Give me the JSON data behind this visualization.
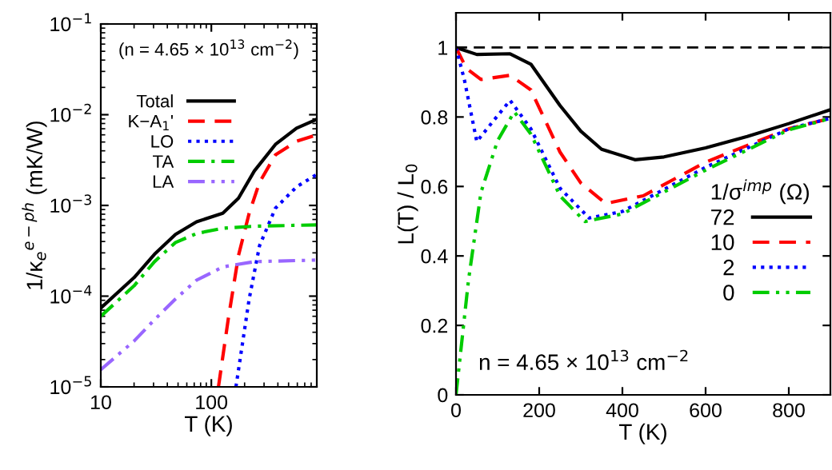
{
  "chart_data": [
    {
      "type": "line",
      "ylabel": "1/κ$_{e}$$^{e−ph}$ (mK/W)",
      "xlabel": "T (K)",
      "log": "xy",
      "xlim": [
        10,
        900
      ],
      "ylim": [
        1e-05,
        0.1
      ],
      "xticks": [
        10,
        100
      ],
      "yticks": [
        {
          "value": 1e-05,
          "label": "10$^{−5}$"
        },
        {
          "value": 0.0001,
          "label": "10$^{−4}$"
        },
        {
          "value": 0.001,
          "label": "10$^{−3}$"
        },
        {
          "value": 0.01,
          "label": "10$^{−2}$"
        },
        {
          "value": 0.1,
          "label": "10$^{−1}$"
        }
      ],
      "annotations": [
        "(n = 4.65 × 10$^{13}$ cm$^{−2}$)"
      ],
      "legend": "top left",
      "grid": false,
      "series": [
        {
          "name": "Total",
          "color": "#000000",
          "line_style": "solid",
          "x": [
            10,
            20,
            30.6,
            47.4,
            73.5,
            127,
            176,
            245,
            380,
            590,
            900
          ],
          "values": [
            7.4e-05,
            0.00016,
            0.00029,
            0.00048,
            0.00066,
            0.00082,
            0.0012,
            0.0024,
            0.0047,
            0.0071,
            0.0089
          ]
        },
        {
          "name": "K−A$_{1}$'",
          "color": "#ff0000",
          "line_style": "dashed",
          "x": [
            116,
            142,
            176,
            220,
            273,
            380,
            590,
            900
          ],
          "values": [
            1e-05,
            5.5e-05,
            0.00028,
            0.00082,
            0.0018,
            0.0036,
            0.0051,
            0.006
          ]
        },
        {
          "name": "LO",
          "color": "#0000ff",
          "line_style": "dotted",
          "x": [
            167,
            220,
            273,
            380,
            590,
            900
          ],
          "values": [
            1e-05,
            9.3e-05,
            0.00036,
            0.00093,
            0.0016,
            0.0022
          ]
        },
        {
          "name": "TA",
          "color": "#00cc00",
          "line_style": "dashdot",
          "x": [
            10,
            20,
            30.6,
            47.4,
            73.5,
            127,
            245,
            900
          ],
          "values": [
            6e-05,
            0.00013,
            0.00024,
            0.00039,
            0.00049,
            0.00056,
            0.00059,
            0.00061
          ]
        },
        {
          "name": "LA",
          "color": "#9966ff",
          "line_style": "dashdotdot",
          "x": [
            10,
            20,
            30.6,
            47.4,
            73.5,
            127,
            245,
            900
          ],
          "values": [
            1.55e-05,
            3.2e-05,
            5.5e-05,
            9.3e-05,
            0.00015,
            0.00021,
            0.00024,
            0.00025
          ]
        }
      ]
    },
    {
      "type": "line",
      "ylabel": "L(T) / L$_{0}$",
      "xlabel": "T (K)",
      "xlim": [
        0,
        900
      ],
      "ylim": [
        0,
        1.1
      ],
      "xticks": [
        0,
        200,
        400,
        600,
        800
      ],
      "yticks": [
        0,
        0.2,
        0.4,
        0.6,
        0.8,
        1
      ],
      "legend_title": "1/σ$^{imp}$ (Ω)",
      "legend": "right",
      "grid": false,
      "annotations": [
        "n = 4.65 × 10$^{13}$ cm$^{−2}$"
      ],
      "ref_lines": [
        {
          "axis": "y",
          "value": 1,
          "label": null,
          "color": "#000000",
          "line_style": "dashed"
        }
      ],
      "series": [
        {
          "name": "72",
          "color": "#000000",
          "line_style": "solid",
          "x": [
            0,
            50,
            130,
            180,
            250,
            300,
            350,
            430,
            500,
            600,
            700,
            800,
            900
          ],
          "values": [
            1.0,
            0.98,
            0.982,
            0.952,
            0.833,
            0.759,
            0.707,
            0.677,
            0.685,
            0.711,
            0.744,
            0.781,
            0.821
          ]
        },
        {
          "name": "10",
          "color": "#ff0000",
          "line_style": "dashed",
          "x": [
            0,
            25,
            60,
            130,
            180,
            250,
            300,
            360,
            450,
            600,
            800,
            900
          ],
          "values": [
            1.0,
            0.94,
            0.908,
            0.92,
            0.878,
            0.699,
            0.61,
            0.551,
            0.573,
            0.67,
            0.766,
            0.796
          ]
        },
        {
          "name": "2",
          "color": "#0000ff",
          "line_style": "dotted",
          "x": [
            0,
            20,
            50,
            80,
            130,
            180,
            250,
            320,
            400,
            600,
            800,
            900
          ],
          "values": [
            1.0,
            0.908,
            0.729,
            0.774,
            0.848,
            0.766,
            0.595,
            0.509,
            0.528,
            0.655,
            0.766,
            0.796
          ]
        },
        {
          "name": "0",
          "color": "#00cc00",
          "line_style": "dashdotdot",
          "x": [
            0,
            30,
            60,
            100,
            140,
            180,
            250,
            310,
            400,
            600,
            800,
            900
          ],
          "values": [
            0.0,
            0.33,
            0.583,
            0.732,
            0.815,
            0.751,
            0.573,
            0.499,
            0.521,
            0.647,
            0.763,
            0.796
          ]
        }
      ]
    }
  ]
}
